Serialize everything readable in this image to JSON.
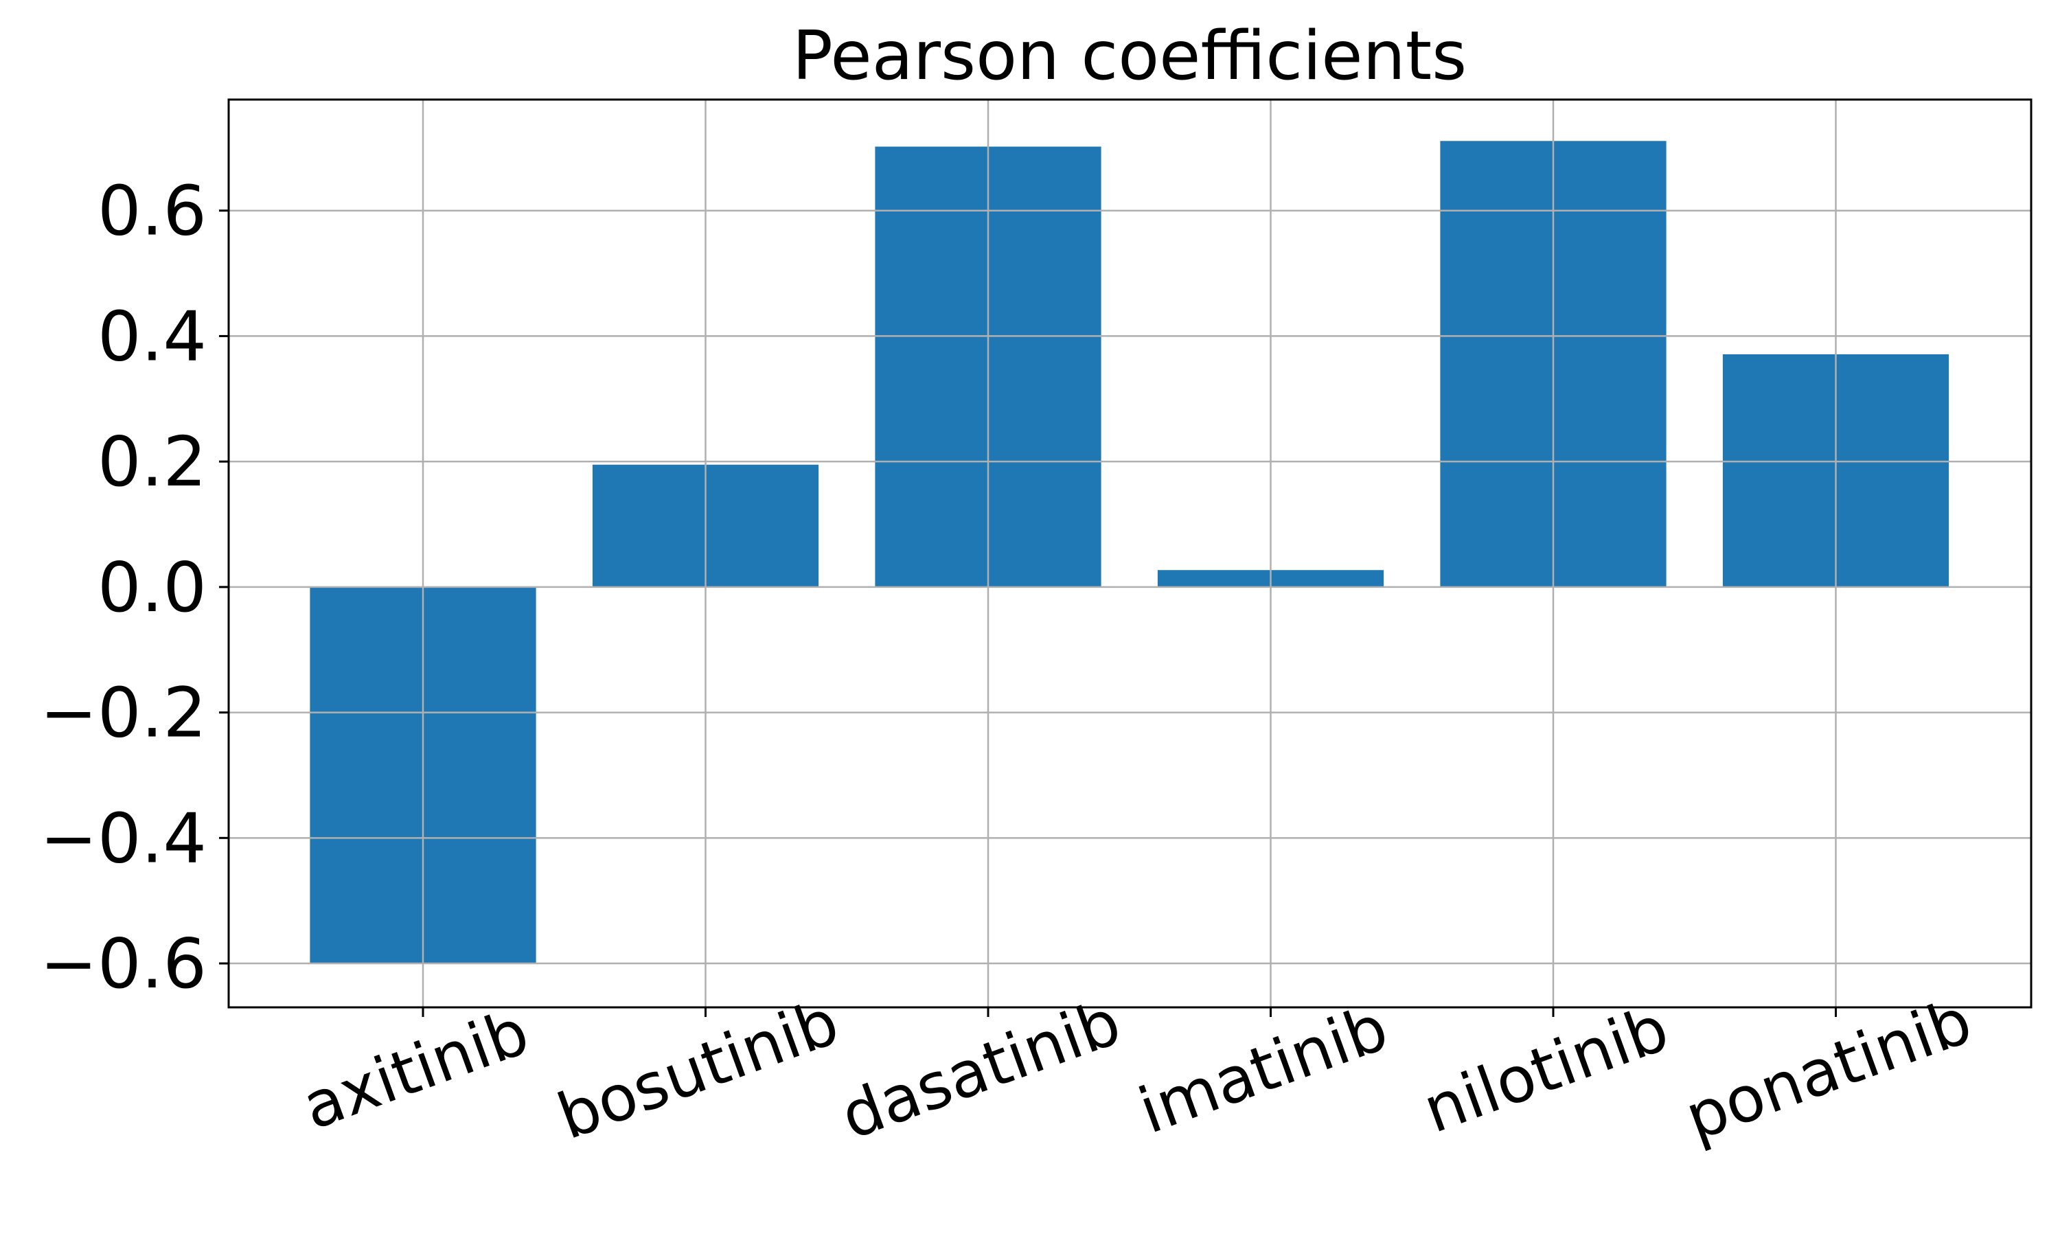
{
  "chart_data": {
    "type": "bar",
    "title": "Pearson coefficients",
    "xlabel": "",
    "ylabel": "",
    "categories": [
      "axitinib",
      "bosutinib",
      "dasatinib",
      "imatinib",
      "nilotinib",
      "ponatinib"
    ],
    "values": [
      -0.601,
      0.195,
      0.702,
      0.027,
      0.711,
      0.371
    ],
    "ylim": [
      -0.67,
      0.777
    ],
    "yticks": [
      -0.6,
      -0.4,
      -0.2,
      0.0,
      0.2,
      0.4,
      0.6
    ],
    "ytick_labels": [
      "−0.6",
      "−0.4",
      "−0.2",
      "0.0",
      "0.2",
      "0.4",
      "0.6"
    ],
    "grid": true,
    "bar_color": "#1f77b4",
    "xtick_rotation_deg": -20
  }
}
